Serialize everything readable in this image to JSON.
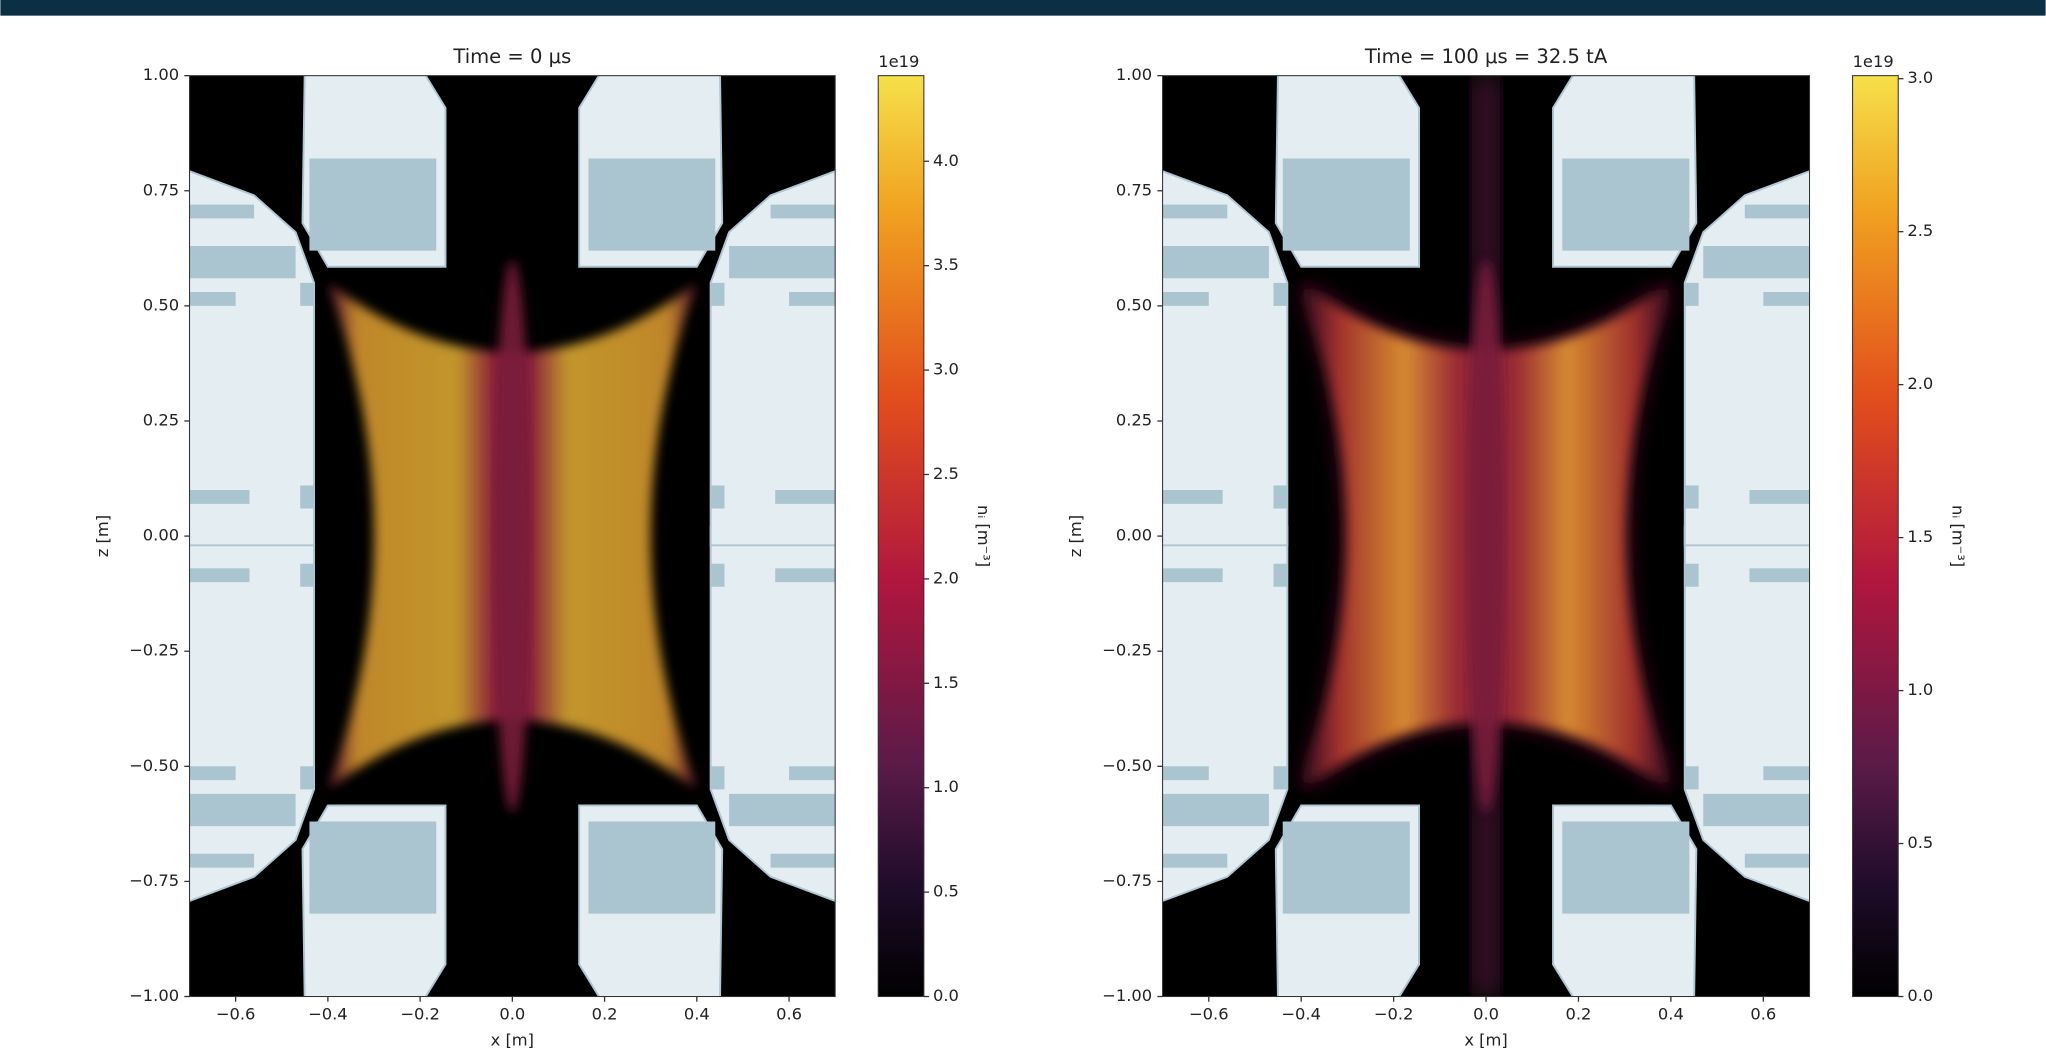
{
  "chart_data": [
    {
      "type": "heatmap",
      "title": "Time = 0 μs",
      "xlabel": "x [m]",
      "ylabel": "z [m]",
      "xlim": [
        -0.7,
        0.7
      ],
      "xticks": [
        {
          "value": -0.6,
          "label": "−0.6"
        },
        {
          "value": -0.4,
          "label": "−0.4"
        },
        {
          "value": -0.2,
          "label": "−0.2"
        },
        {
          "value": 0,
          "label": "0.0"
        },
        0.2,
        0.4,
        0.6
      ],
      "ylim": [
        -1,
        1
      ],
      "yticks": [
        {
          "value": -1,
          "label": "−1.00"
        },
        {
          "value": -0.75,
          "label": "−0.75"
        },
        {
          "value": -0.5,
          "label": "−0.50"
        },
        {
          "value": -0.25,
          "label": "−0.25"
        },
        {
          "value": 0,
          "label": "0.00"
        },
        0.25,
        {
          "value": 0.5,
          "label": "0.50"
        },
        0.75,
        {
          "value": 1,
          "label": "1.00"
        }
      ],
      "colorbar": {
        "label": "nᵢ [m⁻³]",
        "offset": "1e19",
        "lim": [
          0,
          4.41
        ],
        "ticks": [
          {
            "value": 0,
            "label": "0.0"
          },
          0.5,
          {
            "value": 1,
            "label": "1.0"
          },
          1.5,
          {
            "value": 2,
            "label": "2.0"
          },
          2.5,
          {
            "value": 3,
            "label": "3.0"
          },
          3.5,
          {
            "value": 4,
            "label": "4.0"
          }
        ]
      }
    },
    {
      "type": "heatmap",
      "title": "Time = 100 μs = 32.5 tA",
      "xlabel": "x [m]",
      "ylabel": "z [m]",
      "xlim": [
        -0.7,
        0.7
      ],
      "xticks": [
        {
          "value": -0.6,
          "label": "−0.6"
        },
        {
          "value": -0.4,
          "label": "−0.4"
        },
        {
          "value": -0.2,
          "label": "−0.2"
        },
        {
          "value": 0,
          "label": "0.0"
        },
        0.2,
        0.4,
        0.6
      ],
      "ylim": [
        -1,
        1
      ],
      "yticks": [
        {
          "value": -1,
          "label": "−1.00"
        },
        {
          "value": -0.75,
          "label": "−0.75"
        },
        {
          "value": -0.5,
          "label": "−0.50"
        },
        {
          "value": -0.25,
          "label": "−0.25"
        },
        {
          "value": 0,
          "label": "0.00"
        },
        0.25,
        {
          "value": 0.5,
          "label": "0.50"
        },
        0.75,
        {
          "value": 1,
          "label": "1.00"
        }
      ],
      "colorbar": {
        "label": "nᵢ [m⁻³]",
        "offset": "1e19",
        "lim": [
          0,
          3.01
        ],
        "ticks": [
          {
            "value": 0,
            "label": "0.0"
          },
          0.5,
          {
            "value": 1,
            "label": "1.0"
          },
          1.5,
          {
            "value": 2,
            "label": "2.0"
          },
          2.5,
          {
            "value": 3,
            "label": "3.0"
          }
        ]
      }
    }
  ]
}
